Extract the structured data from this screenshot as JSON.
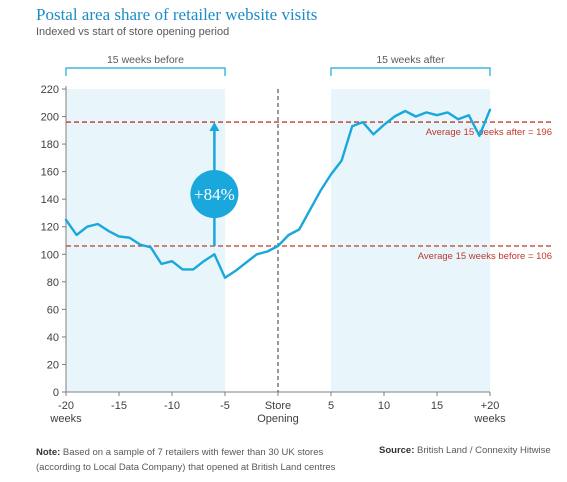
{
  "title": "Postal area share of retailer website visits",
  "subtitle": "Indexed vs start of store opening period",
  "note_label": "Note:",
  "note_line1": " Based on a sample of 7 retailers with fewer than 30 UK stores",
  "note_line2": "(according to Local Data Company) that opened at British Land centres",
  "source_label": "Source:",
  "source_text": " British Land / Connexity Hitwise",
  "chart_data": {
    "type": "line",
    "series": [
      {
        "x": [
          -20,
          -19,
          -18,
          -17,
          -16,
          -15,
          -14,
          -13,
          -12,
          -11,
          -10,
          -9,
          -8,
          -7,
          -6,
          -5,
          -4,
          -3,
          -2,
          -1,
          0,
          1,
          2,
          3,
          4,
          5,
          6,
          7,
          8,
          9,
          10,
          11,
          12,
          13,
          14,
          15,
          16,
          17,
          18,
          19,
          20
        ],
        "values": [
          125,
          114,
          120,
          122,
          117,
          113,
          112,
          107,
          105,
          93,
          95,
          89,
          89,
          95,
          100,
          83,
          88,
          94,
          100,
          102,
          106,
          114,
          118,
          132,
          146,
          158,
          168,
          193,
          196,
          187,
          194,
          200,
          204,
          200,
          203,
          201,
          203,
          198,
          201,
          186,
          205
        ]
      }
    ],
    "xticks": [
      {
        "x": -20,
        "label": "-20",
        "label2": "weeks"
      },
      {
        "x": -15,
        "label": "-15"
      },
      {
        "x": -10,
        "label": "-10"
      },
      {
        "x": -5,
        "label": "-5"
      },
      {
        "x": 0,
        "label": "Store",
        "label2": "Opening"
      },
      {
        "x": 5,
        "label": "5"
      },
      {
        "x": 10,
        "label": "10"
      },
      {
        "x": 15,
        "label": "15"
      },
      {
        "x": 20,
        "label": "+20",
        "label2": "weeks"
      }
    ],
    "yticks": [
      0,
      20,
      40,
      60,
      80,
      100,
      120,
      140,
      160,
      180,
      200,
      220
    ],
    "xlim": [
      -20,
      20
    ],
    "ylim": [
      0,
      220
    ],
    "reference_lines": [
      {
        "y": 196,
        "label": "Average 15 weeks after = 196"
      },
      {
        "y": 106,
        "label": "Average 15 weeks before = 106"
      }
    ],
    "periods": [
      {
        "from": -20,
        "to": -5,
        "label": "15 weeks before"
      },
      {
        "from": 5,
        "to": 20,
        "label": "15 weeks after"
      }
    ],
    "opening_line_x": 0,
    "annotation": {
      "label": "+84%",
      "x": -6,
      "from": 106,
      "to": 196
    },
    "colors": {
      "line": "#1aa7dc",
      "shade": "#e8f6fc",
      "reference": "#c0392b",
      "bracket": "#1aa7dc",
      "badge": "#1aa7dc",
      "opening_line": "#555555"
    },
    "grid": false
  }
}
